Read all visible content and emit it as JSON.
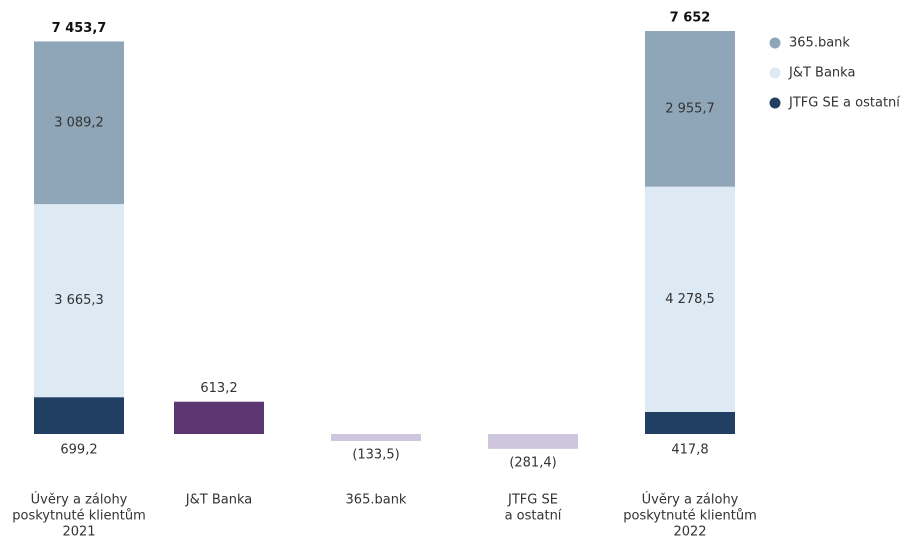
{
  "chart_data": {
    "type": "waterfall",
    "categories": [
      [
        "Úvěry a zálohy",
        "poskytnuté klientům",
        "2021"
      ],
      [
        "J&T Banka"
      ],
      [
        "365.bank"
      ],
      [
        "JTFG SE",
        "a ostatní"
      ],
      [
        "Úvěry a zálohy",
        "poskytnuté klientům",
        "2022"
      ]
    ],
    "series": [
      {
        "name": "JTFG SE a ostatní",
        "color": "#213f63",
        "values": [
          699.2,
          null,
          null,
          null,
          417.8
        ],
        "value_labels": [
          "699,2",
          null,
          null,
          null,
          "417,8"
        ]
      },
      {
        "name": "J&T Banka",
        "color": "#dde9f3",
        "values": [
          3665.3,
          null,
          null,
          null,
          4278.5
        ],
        "value_labels": [
          "3 665,3",
          null,
          null,
          null,
          "4 278,5"
        ]
      },
      {
        "name": "365.bank",
        "color": "#8fa5b8",
        "values": [
          3089.2,
          null,
          null,
          null,
          2955.7
        ],
        "value_labels": [
          "3 089,2",
          null,
          null,
          null,
          "2 955,7"
        ]
      }
    ],
    "changes": {
      "values": [
        null,
        613.2,
        -133.5,
        -281.4,
        null
      ],
      "value_labels": [
        null,
        "613,2",
        "(133,5)",
        "(281,4)",
        null
      ],
      "colors": [
        null,
        "#5b3670",
        "#cdc6dd",
        "#cdc6dd",
        null
      ]
    },
    "totals": {
      "values": [
        7453.7,
        null,
        null,
        null,
        7652
      ],
      "value_labels": [
        "7 453,7",
        null,
        null,
        null,
        "7 652"
      ]
    }
  }
}
